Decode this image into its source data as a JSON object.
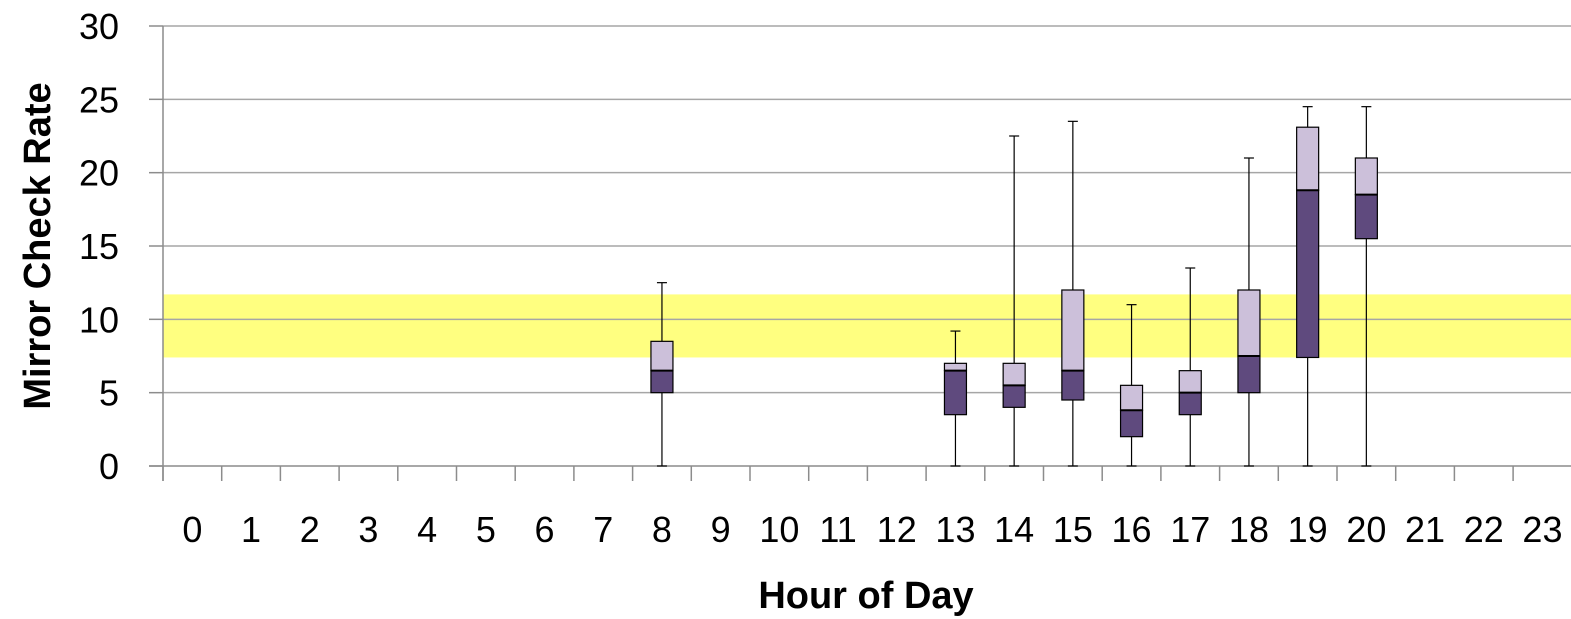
{
  "chart_data": {
    "type": "box",
    "title": "",
    "xlabel": "Hour of Day",
    "ylabel": "Mirror Check Rate",
    "ylim": [
      0,
      30
    ],
    "yticks": [
      0,
      5,
      10,
      15,
      20,
      25,
      30
    ],
    "categories": [
      "0",
      "1",
      "2",
      "3",
      "4",
      "5",
      "6",
      "7",
      "8",
      "9",
      "10",
      "11",
      "12",
      "13",
      "14",
      "15",
      "16",
      "17",
      "18",
      "19",
      "20",
      "21",
      "22",
      "23"
    ],
    "boxes": [
      {
        "hour": 8,
        "min": 0,
        "q1": 5.0,
        "median": 6.5,
        "q3": 8.5,
        "max": 12.5
      },
      {
        "hour": 13,
        "min": 0,
        "q1": 3.5,
        "median": 6.5,
        "q3": 7.0,
        "max": 9.2
      },
      {
        "hour": 14,
        "min": 0,
        "q1": 4.0,
        "median": 5.5,
        "q3": 7.0,
        "max": 22.5
      },
      {
        "hour": 15,
        "min": 0,
        "q1": 4.5,
        "median": 6.5,
        "q3": 12.0,
        "max": 23.5
      },
      {
        "hour": 16,
        "min": 0,
        "q1": 2.0,
        "median": 3.8,
        "q3": 5.5,
        "max": 11.0
      },
      {
        "hour": 17,
        "min": 0,
        "q1": 3.5,
        "median": 5.0,
        "q3": 6.5,
        "max": 13.5
      },
      {
        "hour": 18,
        "min": 0,
        "q1": 5.0,
        "median": 7.5,
        "q3": 12.0,
        "max": 21.0
      },
      {
        "hour": 19,
        "min": 0,
        "q1": 7.4,
        "median": 18.8,
        "q3": 23.1,
        "max": 24.5
      },
      {
        "hour": 20,
        "min": 0,
        "q1": 15.5,
        "median": 18.5,
        "q3": 21.0,
        "max": 24.5
      }
    ],
    "reference_band": {
      "low": 7.4,
      "high": 11.7,
      "color": "#ffff80"
    },
    "colors": {
      "lower_box": "#5f4a7e",
      "upper_box": "#ccc0da",
      "grid": "#a6a6a6",
      "whisker": "#000000"
    },
    "grid": true,
    "legend": "none"
  }
}
